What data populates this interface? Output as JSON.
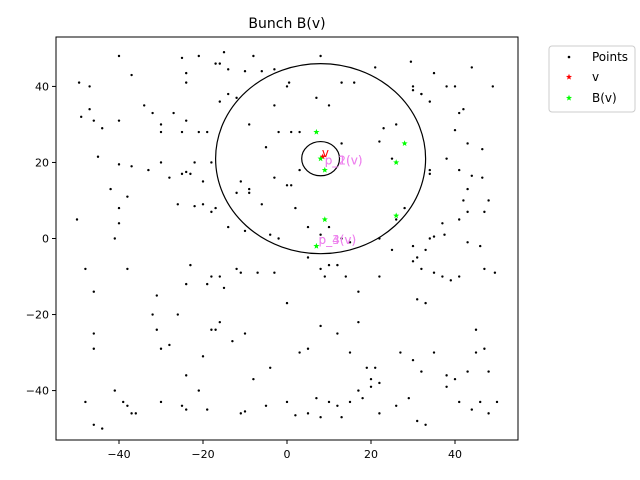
{
  "chart_data": {
    "type": "scatter",
    "title": "Bunch B(v)",
    "xlabel": "",
    "ylabel": "",
    "xlim": [
      -55,
      55
    ],
    "ylim": [
      -53,
      53
    ],
    "xticks": [
      -40,
      -20,
      0,
      20,
      40
    ],
    "yticks": [
      -40,
      -20,
      0,
      20,
      40
    ],
    "grid": false,
    "legend_position": "upper-right-outside",
    "series": [
      {
        "name": "Points",
        "color": "#000000",
        "marker": "dot",
        "points": [
          [
            -49.5,
            41
          ],
          [
            -47,
            40
          ],
          [
            -40,
            48
          ],
          [
            -37,
            43
          ],
          [
            -25,
            47.5
          ],
          [
            -24,
            43.5
          ],
          [
            -24,
            41
          ],
          [
            -21,
            48
          ],
          [
            -17,
            46
          ],
          [
            -16,
            46
          ],
          [
            -15,
            49
          ],
          [
            -14,
            44.5
          ],
          [
            -8,
            48
          ],
          [
            -10,
            44
          ],
          [
            -6,
            44
          ],
          [
            -3,
            44.5
          ],
          [
            0,
            40
          ],
          [
            0.5,
            41
          ],
          [
            8,
            48
          ],
          [
            13,
            41
          ],
          [
            16,
            41
          ],
          [
            21,
            45
          ],
          [
            29.5,
            46.5
          ],
          [
            30,
            40
          ],
          [
            32,
            38
          ],
          [
            35,
            43.5
          ],
          [
            38,
            40
          ],
          [
            40,
            40
          ],
          [
            42,
            34
          ],
          [
            44,
            45
          ],
          [
            49,
            40
          ],
          [
            -49,
            32
          ],
          [
            -47,
            34
          ],
          [
            -46,
            31
          ],
          [
            -44,
            29
          ],
          [
            -40,
            31
          ],
          [
            -34,
            35
          ],
          [
            -32,
            33
          ],
          [
            -30,
            28
          ],
          [
            -30,
            30
          ],
          [
            -27,
            33
          ],
          [
            -25,
            28
          ],
          [
            -24,
            31
          ],
          [
            -21,
            28
          ],
          [
            -19,
            28
          ],
          [
            -16,
            36
          ],
          [
            -14,
            38
          ],
          [
            -12,
            37
          ],
          [
            -9,
            30
          ],
          [
            -3,
            35
          ],
          [
            -2,
            28
          ],
          [
            1,
            28
          ],
          [
            3,
            28
          ],
          [
            7,
            37
          ],
          [
            10,
            35
          ],
          [
            23,
            29
          ],
          [
            26,
            30
          ],
          [
            30,
            39
          ],
          [
            32,
            38
          ],
          [
            34,
            36
          ],
          [
            40,
            28.5
          ],
          [
            41,
            33
          ],
          [
            43,
            25
          ],
          [
            -45,
            21.5
          ],
          [
            -40,
            19.5
          ],
          [
            -37,
            19
          ],
          [
            -33,
            18
          ],
          [
            -30,
            20
          ],
          [
            -28,
            16
          ],
          [
            -25,
            17
          ],
          [
            -24,
            17.5
          ],
          [
            -23,
            17
          ],
          [
            -22,
            20
          ],
          [
            -20,
            15
          ],
          [
            -18,
            20
          ],
          [
            -17,
            8
          ],
          [
            -12,
            12
          ],
          [
            -11,
            15
          ],
          [
            -9,
            13
          ],
          [
            -9,
            12
          ],
          [
            -5,
            24
          ],
          [
            -3,
            16
          ],
          [
            0,
            14
          ],
          [
            1,
            14
          ],
          [
            3,
            18
          ],
          [
            13,
            25
          ],
          [
            22,
            25.5
          ],
          [
            25,
            21
          ],
          [
            34,
            18
          ],
          [
            34,
            17
          ],
          [
            38,
            21
          ],
          [
            41,
            18
          ],
          [
            43,
            13
          ],
          [
            44,
            16.5
          ],
          [
            46.5,
            23.5
          ],
          [
            46.5,
            16
          ],
          [
            -50,
            5
          ],
          [
            -42,
            13
          ],
          [
            -41,
            0
          ],
          [
            -40,
            8
          ],
          [
            -40,
            4
          ],
          [
            -38,
            11
          ],
          [
            -26,
            9
          ],
          [
            -22,
            8.5
          ],
          [
            -20,
            9
          ],
          [
            -18,
            7
          ],
          [
            -14,
            3
          ],
          [
            -10,
            2
          ],
          [
            -6,
            9
          ],
          [
            -4,
            1
          ],
          [
            -2,
            0
          ],
          [
            2,
            8
          ],
          [
            5,
            3
          ],
          [
            8,
            1
          ],
          [
            10,
            3
          ],
          [
            13,
            0
          ],
          [
            15,
            -1
          ],
          [
            22,
            0
          ],
          [
            26,
            5
          ],
          [
            28,
            8
          ],
          [
            30,
            -2
          ],
          [
            33,
            -3
          ],
          [
            34,
            0
          ],
          [
            35,
            0.5
          ],
          [
            37,
            4
          ],
          [
            37.5,
            1
          ],
          [
            42,
            10
          ],
          [
            41,
            5
          ],
          [
            43,
            7
          ],
          [
            47,
            7
          ],
          [
            48,
            10
          ],
          [
            46,
            -2
          ],
          [
            -48,
            -8
          ],
          [
            -46,
            -14
          ],
          [
            -38,
            -8
          ],
          [
            -31,
            -15
          ],
          [
            -23,
            -7
          ],
          [
            -24,
            -12
          ],
          [
            -19,
            -12
          ],
          [
            -18,
            -10
          ],
          [
            -16,
            -10
          ],
          [
            -15,
            -13
          ],
          [
            -12,
            -8
          ],
          [
            -11,
            -9
          ],
          [
            -7,
            -9
          ],
          [
            -3,
            -9
          ],
          [
            0,
            -17
          ],
          [
            5,
            -5
          ],
          [
            8,
            -8
          ],
          [
            9,
            -10
          ],
          [
            10,
            -7
          ],
          [
            12,
            -7
          ],
          [
            14,
            -10
          ],
          [
            17,
            -14
          ],
          [
            22,
            -10
          ],
          [
            25,
            -3
          ],
          [
            31,
            -16
          ],
          [
            33,
            -17
          ],
          [
            30,
            -6
          ],
          [
            31,
            -5
          ],
          [
            32,
            -8
          ],
          [
            35,
            -9
          ],
          [
            37,
            -10
          ],
          [
            39,
            -11
          ],
          [
            41,
            -10
          ],
          [
            43,
            -1
          ],
          [
            47,
            -8
          ],
          [
            49.5,
            -9
          ],
          [
            -46,
            -25
          ],
          [
            -46,
            -29
          ],
          [
            -41,
            -40
          ],
          [
            -39,
            -43
          ],
          [
            -36,
            -46
          ],
          [
            -32,
            -20
          ],
          [
            -31,
            -24
          ],
          [
            -30,
            -29
          ],
          [
            -28,
            -28
          ],
          [
            -26,
            -20
          ],
          [
            -24,
            -36
          ],
          [
            -20,
            -31
          ],
          [
            -18,
            -24
          ],
          [
            -17,
            -24
          ],
          [
            -16,
            -22
          ],
          [
            -13,
            -27
          ],
          [
            -10,
            -25
          ],
          [
            -8,
            -37
          ],
          [
            -4,
            -34
          ],
          [
            3,
            -30
          ],
          [
            5,
            -29
          ],
          [
            8,
            -23
          ],
          [
            12,
            -25
          ],
          [
            15,
            -30
          ],
          [
            17,
            -22
          ],
          [
            19,
            -34
          ],
          [
            21,
            -34
          ],
          [
            22,
            -38
          ],
          [
            27,
            -30
          ],
          [
            30,
            -32
          ],
          [
            32,
            -35
          ],
          [
            35,
            -30
          ],
          [
            38,
            -36
          ],
          [
            43,
            -35
          ],
          [
            45,
            -24
          ],
          [
            45,
            -30
          ],
          [
            47,
            -29
          ],
          [
            48,
            -35
          ],
          [
            -48,
            -43
          ],
          [
            -46,
            -49
          ],
          [
            -44,
            -50
          ],
          [
            -38,
            -44
          ],
          [
            -37,
            -46
          ],
          [
            -30,
            -43
          ],
          [
            -25,
            -44
          ],
          [
            -24,
            -45
          ],
          [
            -21,
            -40
          ],
          [
            -19,
            -45
          ],
          [
            -11,
            -46
          ],
          [
            -10,
            -45.5
          ],
          [
            -5,
            -44
          ],
          [
            0,
            -43
          ],
          [
            2,
            -46.5
          ],
          [
            5,
            -46
          ],
          [
            7,
            -42
          ],
          [
            8,
            -47
          ],
          [
            10,
            -43
          ],
          [
            12,
            -44
          ],
          [
            13,
            -47
          ],
          [
            15,
            -43
          ],
          [
            17,
            -40
          ],
          [
            18,
            -42
          ],
          [
            20,
            -37
          ],
          [
            20,
            -39
          ],
          [
            22,
            -46
          ],
          [
            26,
            -44
          ],
          [
            29,
            -42
          ],
          [
            31,
            -48
          ],
          [
            33,
            -49
          ],
          [
            38,
            -39
          ],
          [
            40,
            -37
          ],
          [
            41,
            -43
          ],
          [
            44,
            -45
          ],
          [
            46,
            -43
          ],
          [
            48,
            -46
          ],
          [
            50,
            -43
          ]
        ]
      },
      {
        "name": "v",
        "color": "#ff0000",
        "marker": "star",
        "points": [
          [
            8.5,
            21.5
          ]
        ]
      },
      {
        "name": "B(v)",
        "color": "#00ff00",
        "marker": "star",
        "points": [
          [
            7,
            28
          ],
          [
            8,
            21
          ],
          [
            9,
            18
          ],
          [
            9,
            5
          ],
          [
            7,
            -2
          ],
          [
            26,
            20
          ],
          [
            28,
            25
          ],
          [
            26,
            6
          ]
        ]
      }
    ],
    "circles": [
      {
        "center": [
          8,
          21
        ],
        "radius": 25,
        "color": "#000000"
      },
      {
        "center": [
          8,
          21
        ],
        "radius": 4.5,
        "color": "#000000"
      }
    ],
    "annotations": [
      {
        "text": "v",
        "x": 8.3,
        "y": 21.5,
        "color": "#ff0000"
      },
      {
        "text": "p_2(v)",
        "x": 9,
        "y": 19.5,
        "color": "#ee82ee"
      },
      {
        "text": "p_1(v)",
        "x": 9,
        "y": 19.5,
        "color": "#ee82ee"
      },
      {
        "text": "p_3(v)",
        "x": 7.5,
        "y": -1.5,
        "color": "#ee82ee"
      },
      {
        "text": "p_4(v)",
        "x": 7.5,
        "y": -1.5,
        "color": "#ee82ee"
      }
    ]
  }
}
